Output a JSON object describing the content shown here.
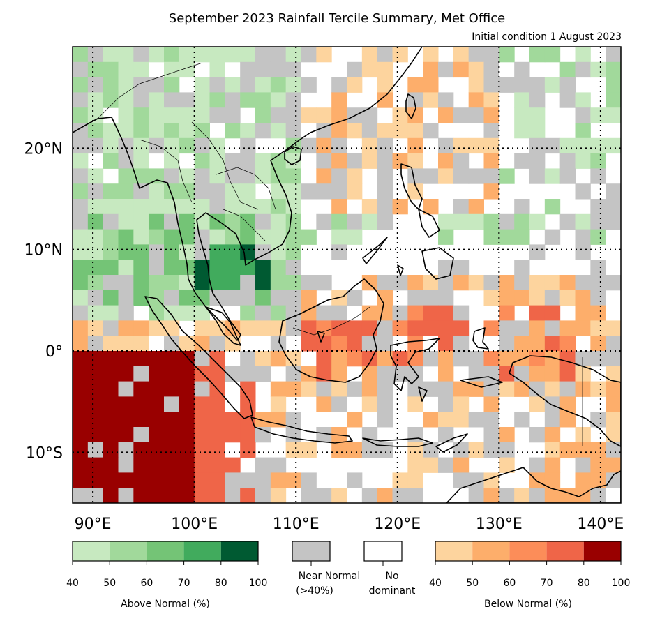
{
  "title": "September 2023 Rainfall Tercile Summary, Met Office",
  "subtitle": "Initial condition 1 August 2023",
  "map": {
    "lon_range": [
      88,
      142
    ],
    "lat_range": [
      -15,
      30
    ],
    "lat_ticks": [
      {
        "value": 20,
        "label": "20°N"
      },
      {
        "value": 10,
        "label": "10°N"
      },
      {
        "value": 0,
        "label": "0°"
      },
      {
        "value": -10,
        "label": "10°S"
      }
    ],
    "lon_ticks": [
      {
        "value": 90,
        "label": "90°E"
      },
      {
        "value": 100,
        "label": "100°E"
      },
      {
        "value": 110,
        "label": "110°E"
      },
      {
        "value": 120,
        "label": "120°E"
      },
      {
        "value": 130,
        "label": "130°E"
      },
      {
        "value": 140,
        "label": "140°E"
      }
    ],
    "gridlines": true
  },
  "legend": {
    "above": {
      "label": "Above Normal (%)",
      "ticks": [
        "40",
        "50",
        "60",
        "70",
        "80",
        "100"
      ],
      "colors": [
        "#c7e9c0",
        "#a1d99b",
        "#74c476",
        "#41ab5d",
        "#005a32"
      ]
    },
    "near": {
      "label_line1": "Near Normal",
      "label_line2": "(>40%)",
      "color": "#c4c4c4"
    },
    "none": {
      "label_line1": "No",
      "label_line2": "dominant",
      "color": "#ffffff"
    },
    "below": {
      "label": "Below Normal (%)",
      "ticks": [
        "40",
        "50",
        "60",
        "70",
        "80",
        "100"
      ],
      "colors": [
        "#fdd49e",
        "#fdae6b",
        "#fc8d59",
        "#ef6548",
        "#990000"
      ]
    }
  }
}
